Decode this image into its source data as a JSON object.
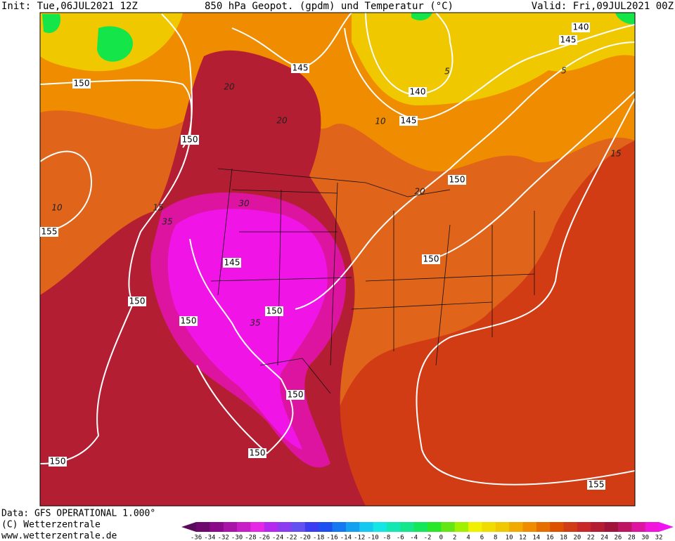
{
  "header": {
    "init": "Init: Tue,06JUL2021 12Z",
    "title": "850 hPa Geopot. (gpdm) und Temperatur (°C)",
    "valid": "Valid: Fri,09JUL2021 00Z"
  },
  "footer": {
    "data": "Data: GFS OPERATIONAL 1.000°",
    "copyright": "(C) Wetterzentrale",
    "url": "www.wetterzentrale.de"
  },
  "geopotential_labels": [
    "145",
    "150",
    "150",
    "140",
    "145",
    "140",
    "145",
    "150",
    "155",
    "145",
    "150",
    "150",
    "150",
    "150",
    "150",
    "150",
    "150",
    "155"
  ],
  "temperature_labels": [
    "20",
    "20",
    "10",
    "10",
    "15",
    "35",
    "30",
    "35",
    "5",
    "5",
    "15",
    "20"
  ],
  "legend": {
    "ticks": [
      -36,
      -34,
      -32,
      -30,
      -28,
      -26,
      -24,
      -22,
      -20,
      -18,
      -16,
      -14,
      -12,
      -10,
      -8,
      -6,
      -4,
      -2,
      0,
      2,
      4,
      6,
      8,
      10,
      12,
      14,
      16,
      18,
      20,
      22,
      24,
      26,
      28,
      30,
      32
    ],
    "colors": [
      "#5a0a5a",
      "#6e0a6e",
      "#8a0a8a",
      "#a814a8",
      "#c81ec8",
      "#e628e6",
      "#b428f0",
      "#8c3cf0",
      "#6450f0",
      "#3c3cf0",
      "#1e50f0",
      "#1478f0",
      "#14a0f0",
      "#14c8f0",
      "#14e6e6",
      "#14e6b4",
      "#14e68c",
      "#14e65a",
      "#28e628",
      "#64e614",
      "#a0f000",
      "#f0f000",
      "#f0dc00",
      "#f0c800",
      "#f0aa00",
      "#f08c00",
      "#e66e00",
      "#dc5000",
      "#d23c14",
      "#c82828",
      "#b41e32",
      "#a0143c",
      "#be1464",
      "#dc14a0",
      "#f014dc",
      "#f014f0"
    ]
  }
}
